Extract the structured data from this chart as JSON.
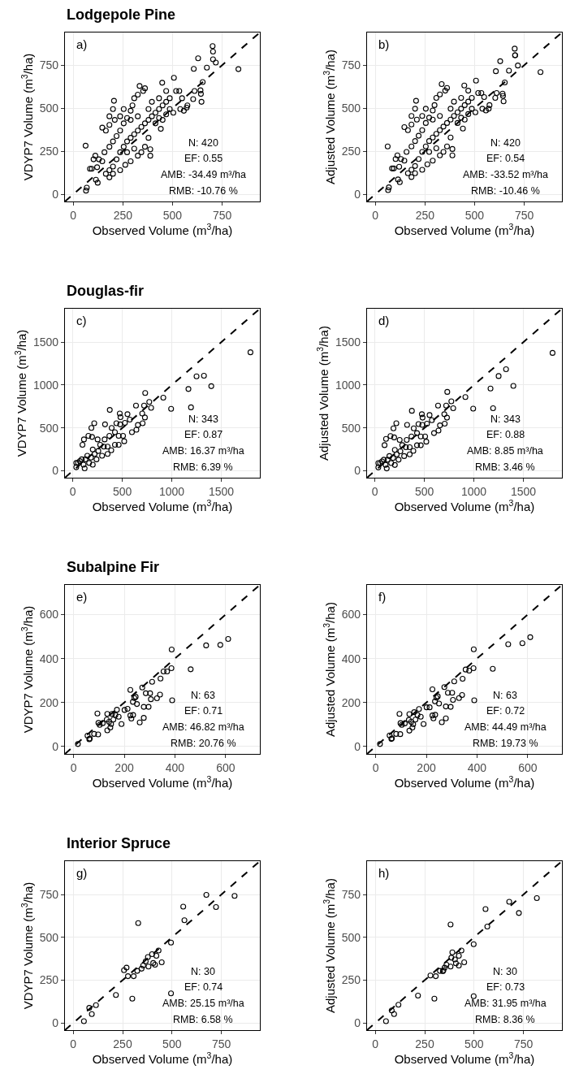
{
  "chart_data": [
    {
      "type": "scatter",
      "title": "Lodgepole Pine",
      "xlabel": "Observed Volume (m$^{3}$/ha)",
      "ylabel": "VDYP7 Volume (m$^{3}$/ha)",
      "xlim": [
        -42,
        940
      ],
      "ylim": [
        -42,
        940
      ],
      "xticks": [
        0,
        250,
        500,
        750
      ],
      "yticks": [
        0,
        250,
        500,
        750
      ],
      "grid": true,
      "marker": "circle",
      "annotations": [
        "a)",
        "N: 420",
        "EF: 0.55",
        "AMB: -34.49 m³/ha",
        "RMB: -10.76 %"
      ],
      "series": [
        {
          "color": "#000000",
          "x": [
            62,
            64,
            68,
            114,
            123,
            205,
            334,
            361,
            448,
            507,
            518,
            534,
            604,
            611,
            607,
            629,
            641,
            643,
            646,
            652,
            673,
            704,
            702,
            704,
            718,
            832,
            571,
            548,
            84,
            93,
            120,
            146,
            146,
            164,
            182,
            164,
            182,
            200,
            218,
            236,
            254,
            271,
            289,
            307,
            325,
            343,
            361,
            379,
            396,
            414,
            432,
            450,
            468,
            486,
            504,
            441,
            414,
            379,
            388,
            388,
            361,
            343,
            325,
            289,
            262,
            236,
            200,
            182,
            102,
            111,
            129,
            157,
            182,
            200,
            218,
            236,
            254,
            271,
            289,
            298,
            307,
            325,
            352,
            254,
            236,
            209,
            182,
            200,
            289,
            396,
            432,
            468,
            486,
            539,
            557,
            575,
            379,
            450,
            468,
            271,
            307,
            325,
            432
          ],
          "values": [
            282,
            21,
            38,
            84,
            67,
            543,
            629,
            616,
            648,
            677,
            600,
            600,
            553,
            600,
            729,
            790,
            604,
            583,
            537,
            652,
            736,
            784,
            861,
            829,
            765,
            727,
            503,
            558,
            148,
            148,
            157,
            192,
            387,
            370,
            403,
            119,
            140,
            161,
            203,
            244,
            276,
            307,
            328,
            349,
            370,
            391,
            412,
            432,
            453,
            474,
            495,
            516,
            537,
            495,
            474,
            380,
            412,
            328,
            224,
            261,
            276,
            244,
            224,
            192,
            171,
            140,
            119,
            98,
            203,
            224,
            203,
            244,
            276,
            307,
            338,
            370,
            412,
            443,
            485,
            516,
            558,
            579,
            600,
            495,
            453,
            432,
            453,
            495,
            432,
            537,
            558,
            600,
            558,
            495,
            485,
            516,
            495,
            432,
            464,
            244,
            265,
            453,
            443
          ]
        },
        {
          "type": "line",
          "color": "#000000",
          "line_style": "dashed",
          "marker": "none",
          "x": [
            -42,
            940
          ],
          "values": [
            -42,
            940
          ]
        }
      ]
    },
    {
      "type": "scatter",
      "xlabel": "Observed Volume (m$^{3}$/ha)",
      "ylabel": "Adjusted Volume (m$^{3}$/ha)",
      "xlim": [
        -42,
        940
      ],
      "ylim": [
        -42,
        940
      ],
      "xticks": [
        0,
        250,
        500,
        750
      ],
      "yticks": [
        0,
        250,
        500,
        750
      ],
      "grid": true,
      "marker": "circle",
      "annotations": [
        "b)",
        "N: 420",
        "EF: 0.54",
        "AMB: -33.52 m³/ha",
        "RMB: -10.46 %"
      ],
      "series": [
        {
          "color": "#000000",
          "x": [
            62,
            64,
            68,
            114,
            123,
            205,
            334,
            361,
            448,
            507,
            518,
            534,
            604,
            611,
            607,
            629,
            641,
            643,
            646,
            652,
            673,
            704,
            702,
            704,
            718,
            832,
            571,
            548,
            84,
            93,
            120,
            146,
            146,
            164,
            182,
            164,
            182,
            200,
            218,
            236,
            254,
            271,
            289,
            307,
            325,
            343,
            361,
            379,
            396,
            414,
            432,
            450,
            468,
            486,
            504,
            441,
            414,
            379,
            388,
            388,
            361,
            343,
            325,
            289,
            262,
            236,
            200,
            182,
            102,
            111,
            129,
            157,
            182,
            200,
            218,
            236,
            254,
            271,
            289,
            298,
            307,
            325,
            352,
            254,
            236,
            209,
            182,
            200,
            289,
            396,
            432,
            468,
            486,
            539,
            557,
            575,
            379,
            450,
            468,
            271,
            307,
            325,
            432
          ],
          "values": [
            278,
            24,
            40,
            86,
            70,
            543,
            640,
            618,
            632,
            660,
            588,
            588,
            560,
            588,
            715,
            773,
            585,
            572,
            540,
            650,
            718,
            808,
            846,
            808,
            748,
            710,
            497,
            565,
            150,
            150,
            160,
            195,
            390,
            372,
            405,
            122,
            142,
            164,
            205,
            246,
            278,
            309,
            330,
            351,
            372,
            393,
            414,
            434,
            455,
            476,
            497,
            518,
            538,
            497,
            476,
            382,
            414,
            330,
            226,
            263,
            278,
            246,
            226,
            195,
            174,
            142,
            122,
            100,
            205,
            226,
            205,
            246,
            278,
            309,
            340,
            372,
            414,
            445,
            487,
            518,
            560,
            580,
            602,
            497,
            455,
            434,
            455,
            497,
            434,
            538,
            560,
            602,
            560,
            497,
            487,
            518,
            497,
            434,
            466,
            246,
            267,
            455,
            445
          ]
        },
        {
          "type": "line",
          "color": "#000000",
          "line_style": "dashed",
          "marker": "none",
          "x": [
            -42,
            940
          ],
          "values": [
            -42,
            940
          ]
        }
      ]
    },
    {
      "type": "scatter",
      "title": "Douglas-fir",
      "xlabel": "Observed Volume (m$^{3}$/ha)",
      "ylabel": "VDYP7 Volume (m$^{3}$/ha)",
      "xlim": [
        -80,
        1890
      ],
      "ylim": [
        -80,
        1890
      ],
      "xticks": [
        0,
        500,
        1000,
        1500
      ],
      "yticks": [
        0,
        500,
        1000,
        1500
      ],
      "grid": true,
      "marker": "circle",
      "annotations": [
        "c)",
        "N: 343",
        "EF: 0.87",
        "AMB: 16.37 m³/ha",
        "RMB: 6.39 %"
      ],
      "series": [
        {
          "color": "#000000",
          "x": [
            1795,
            1325,
            1250,
            1168,
            1399,
            1194,
            993,
            914,
            731,
            720,
            772,
            791,
            638,
            701,
            705,
            728,
            597,
            642,
            657,
            552,
            575,
            526,
            474,
            481,
            373,
            478,
            440,
            392,
            325,
            216,
            187,
            112,
            97,
            157,
            194,
            250,
            321,
            369,
            425,
            463,
            507,
            519,
            351,
            276,
            201,
            146,
            90,
            52,
            34,
            108,
            164,
            239,
            295,
            351,
            388,
            313,
            257,
            71,
            127,
            183,
            220,
            34,
            119,
            201,
            425,
            463
          ],
          "values": [
            1382,
            1109,
            1101,
            954,
            987,
            740,
            723,
            853,
            908,
            761,
            803,
            735,
            761,
            668,
            555,
            622,
            450,
            479,
            534,
            660,
            597,
            559,
            668,
            626,
            710,
            542,
            555,
            500,
            542,
            555,
            500,
            366,
            303,
            408,
            395,
            366,
            366,
            408,
            450,
            408,
            408,
            345,
            282,
            303,
            248,
            176,
            134,
            92,
            42,
            71,
            92,
            134,
            176,
            197,
            239,
            282,
            231,
            113,
            134,
            155,
            197,
            92,
            29,
            71,
            303,
            303
          ]
        },
        {
          "type": "line",
          "color": "#000000",
          "line_style": "dashed",
          "marker": "none",
          "x": [
            -80,
            1890
          ],
          "values": [
            -80,
            1890
          ]
        }
      ]
    },
    {
      "type": "scatter",
      "xlabel": "Observed Volume (m$^{3}$/ha)",
      "ylabel": "Adjusted Volume (m$^{3}$/ha)",
      "xlim": [
        -80,
        1890
      ],
      "ylim": [
        -80,
        1890
      ],
      "xticks": [
        0,
        500,
        1000,
        1500
      ],
      "yticks": [
        0,
        500,
        1000,
        1500
      ],
      "grid": true,
      "marker": "circle",
      "annotations": [
        "d)",
        "N: 343",
        "EF: 0.88",
        "AMB: 8.85 m³/ha",
        "RMB: 3.46 %"
      ],
      "series": [
        {
          "color": "#000000",
          "x": [
            1795,
            1325,
            1250,
            1168,
            1399,
            1194,
            993,
            914,
            731,
            720,
            772,
            791,
            638,
            701,
            705,
            728,
            597,
            642,
            657,
            552,
            575,
            526,
            474,
            481,
            373,
            478,
            440,
            392,
            325,
            216,
            187,
            112,
            97,
            157,
            194,
            250,
            321,
            369,
            425,
            463,
            507,
            519,
            351,
            276,
            201,
            146,
            90,
            52,
            34,
            108,
            164,
            239,
            295,
            351,
            388,
            313,
            257,
            71,
            127,
            183,
            220,
            34,
            119,
            201,
            425,
            463
          ],
          "values": [
            1375,
            1185,
            1105,
            960,
            990,
            730,
            725,
            860,
            920,
            760,
            810,
            730,
            760,
            660,
            550,
            620,
            440,
            470,
            530,
            650,
            590,
            550,
            660,
            620,
            700,
            535,
            545,
            495,
            535,
            555,
            495,
            372,
            300,
            405,
            390,
            360,
            360,
            400,
            440,
            400,
            400,
            340,
            275,
            300,
            245,
            172,
            130,
            90,
            40,
            70,
            90,
            130,
            172,
            192,
            232,
            275,
            228,
            110,
            130,
            150,
            192,
            90,
            28,
            68,
            298,
            298
          ]
        },
        {
          "type": "line",
          "color": "#000000",
          "line_style": "dashed",
          "marker": "none",
          "x": [
            -80,
            1890
          ],
          "values": [
            -80,
            1890
          ]
        }
      ]
    },
    {
      "type": "scatter",
      "title": "Subalpine Fir",
      "xlabel": "Observed Volume (m$^{3}$/ha)",
      "ylabel": "VDYP7 Volume (m$^{3}$/ha)",
      "xlim": [
        -34,
        735
      ],
      "ylim": [
        -34,
        735
      ],
      "xticks": [
        0,
        200,
        400,
        600
      ],
      "yticks": [
        0,
        200,
        400,
        600
      ],
      "grid": true,
      "marker": "circle",
      "annotations": [
        "e)",
        "N: 63",
        "EF: 0.71",
        "AMB: 46.82 m³/ha",
        "RMB: 20.76 %"
      ],
      "series": [
        {
          "color": "#000000",
          "x": [
            17,
            55,
            62,
            64,
            81,
            97,
            94,
            98,
            103,
            115,
            131,
            133,
            133,
            140,
            145,
            148,
            152,
            157,
            165,
            171,
            178,
            189,
            201,
            213,
            224,
            224,
            228,
            234,
            235,
            240,
            245,
            250,
            261,
            271,
            277,
            277,
            285,
            296,
            302,
            305,
            310,
            329,
            341,
            343,
            355,
            369,
            386,
            387,
            389,
            462,
            523,
            579,
            610
          ],
          "values": [
            11,
            49,
            33,
            36,
            57,
            55,
            150,
            107,
            98,
            106,
            122,
            73,
            148,
            112,
            86,
            102,
            148,
            122,
            143,
            167,
            135,
            102,
            166,
            171,
            257,
            141,
            127,
            203,
            143,
            220,
            226,
            193,
            109,
            268,
            130,
            180,
            242,
            180,
            242,
            215,
            294,
            219,
            236,
            309,
            341,
            341,
            356,
            441,
            210,
            351,
            460,
            462,
            489
          ]
        },
        {
          "type": "line",
          "color": "#000000",
          "line_style": "dashed",
          "marker": "none",
          "x": [
            -34,
            735
          ],
          "values": [
            -34,
            735
          ]
        }
      ]
    },
    {
      "type": "scatter",
      "xlabel": "Observed Volume (m$^{3}$/ha)",
      "ylabel": "Adjusted Volume (m$^{3}$/ha)",
      "xlim": [
        -34,
        735
      ],
      "ylim": [
        -34,
        735
      ],
      "xticks": [
        0,
        200,
        400,
        600
      ],
      "yticks": [
        0,
        200,
        400,
        600
      ],
      "grid": true,
      "marker": "circle",
      "annotations": [
        "f)",
        "N: 63",
        "EF: 0.72",
        "AMB: 44.49 m³/ha",
        "RMB: 19.73 %"
      ],
      "series": [
        {
          "color": "#000000",
          "x": [
            17,
            55,
            62,
            64,
            81,
            97,
            94,
            98,
            103,
            115,
            131,
            133,
            133,
            140,
            145,
            148,
            152,
            157,
            165,
            171,
            178,
            189,
            201,
            213,
            224,
            224,
            228,
            234,
            235,
            240,
            245,
            250,
            261,
            271,
            277,
            277,
            285,
            296,
            302,
            305,
            310,
            329,
            341,
            343,
            355,
            369,
            386,
            387,
            389,
            462,
            523,
            579,
            610
          ],
          "values": [
            11,
            50,
            34,
            37,
            57,
            56,
            148,
            106,
            98,
            105,
            121,
            72,
            147,
            112,
            86,
            101,
            156,
            122,
            143,
            170,
            135,
            102,
            178,
            178,
            260,
            141,
            128,
            205,
            144,
            222,
            228,
            195,
            110,
            270,
            128,
            182,
            244,
            180,
            244,
            212,
            296,
            220,
            234,
            308,
            350,
            345,
            356,
            442,
            210,
            353,
            465,
            470,
            497
          ]
        },
        {
          "type": "line",
          "color": "#000000",
          "line_style": "dashed",
          "marker": "none",
          "x": [
            -34,
            735
          ],
          "values": [
            -34,
            735
          ]
        }
      ]
    },
    {
      "type": "scatter",
      "title": "Interior Spruce",
      "xlabel": "Observed Volume (m$^{3}$/ha)",
      "ylabel": "VDYP7 Volume (m$^{3}$/ha)",
      "xlim": [
        -42,
        945
      ],
      "ylim": [
        -42,
        945
      ],
      "xticks": [
        0,
        250,
        500,
        750
      ],
      "yticks": [
        0,
        250,
        500,
        750
      ],
      "grid": true,
      "marker": "circle",
      "annotations": [
        "g)",
        "N: 30",
        "EF: 0.74",
        "AMB: 25.15 m³/ha",
        "RMB: 6.58 %"
      ],
      "series": [
        {
          "color": "#000000",
          "x": [
            54,
            81,
            94,
            115,
            216,
            277,
            306,
            299,
            329,
            324,
            346,
            354,
            367,
            378,
            381,
            399,
            405,
            414,
            421,
            432,
            448,
            495,
            495,
            557,
            563,
            674,
            723,
            817,
            257,
            270
          ],
          "values": [
            10,
            88,
            52,
            104,
            163,
            273,
            273,
            142,
            583,
            304,
            317,
            335,
            360,
            385,
            329,
            402,
            350,
            340,
            392,
            423,
            354,
            469,
            173,
            679,
            600,
            748,
            677,
            742,
            308,
            323
          ]
        },
        {
          "type": "line",
          "color": "#000000",
          "line_style": "dashed",
          "marker": "none",
          "x": [
            -42,
            945
          ],
          "values": [
            -42,
            945
          ]
        }
      ]
    },
    {
      "type": "scatter",
      "xlabel": "Observed Volume (m$^{3}$/ha)",
      "ylabel": "Adjusted Volume (m$^{3}$/ha)",
      "xlim": [
        -42,
        945
      ],
      "ylim": [
        -42,
        945
      ],
      "xticks": [
        0,
        250,
        500,
        750
      ],
      "yticks": [
        0,
        250,
        500,
        750
      ],
      "grid": true,
      "marker": "circle",
      "annotations": [
        "h)",
        "N: 30",
        "EF: 0.73",
        "AMB: 31.95 m³/ha",
        "RMB: 8.36 %"
      ],
      "series": [
        {
          "color": "#000000",
          "x": [
            54,
            83,
            95,
            117,
            216,
            279,
            306,
            299,
            381,
            345,
            351,
            360,
            385,
            381,
            403,
            408,
            423,
            423,
            436,
            450,
            498,
            498,
            558,
            567,
            678,
            727,
            818,
            327,
            342,
            390
          ],
          "values": [
            10,
            73,
            52,
            106,
            160,
            277,
            273,
            142,
            575,
            308,
            323,
            340,
            381,
            329,
            371,
            348,
            335,
            392,
            423,
            354,
            460,
            156,
            665,
            563,
            708,
            642,
            729,
            304,
            302,
            412
          ]
        },
        {
          "type": "line",
          "color": "#000000",
          "line_style": "dashed",
          "marker": "none",
          "x": [
            -42,
            945
          ],
          "values": [
            -42,
            945
          ]
        }
      ]
    }
  ]
}
